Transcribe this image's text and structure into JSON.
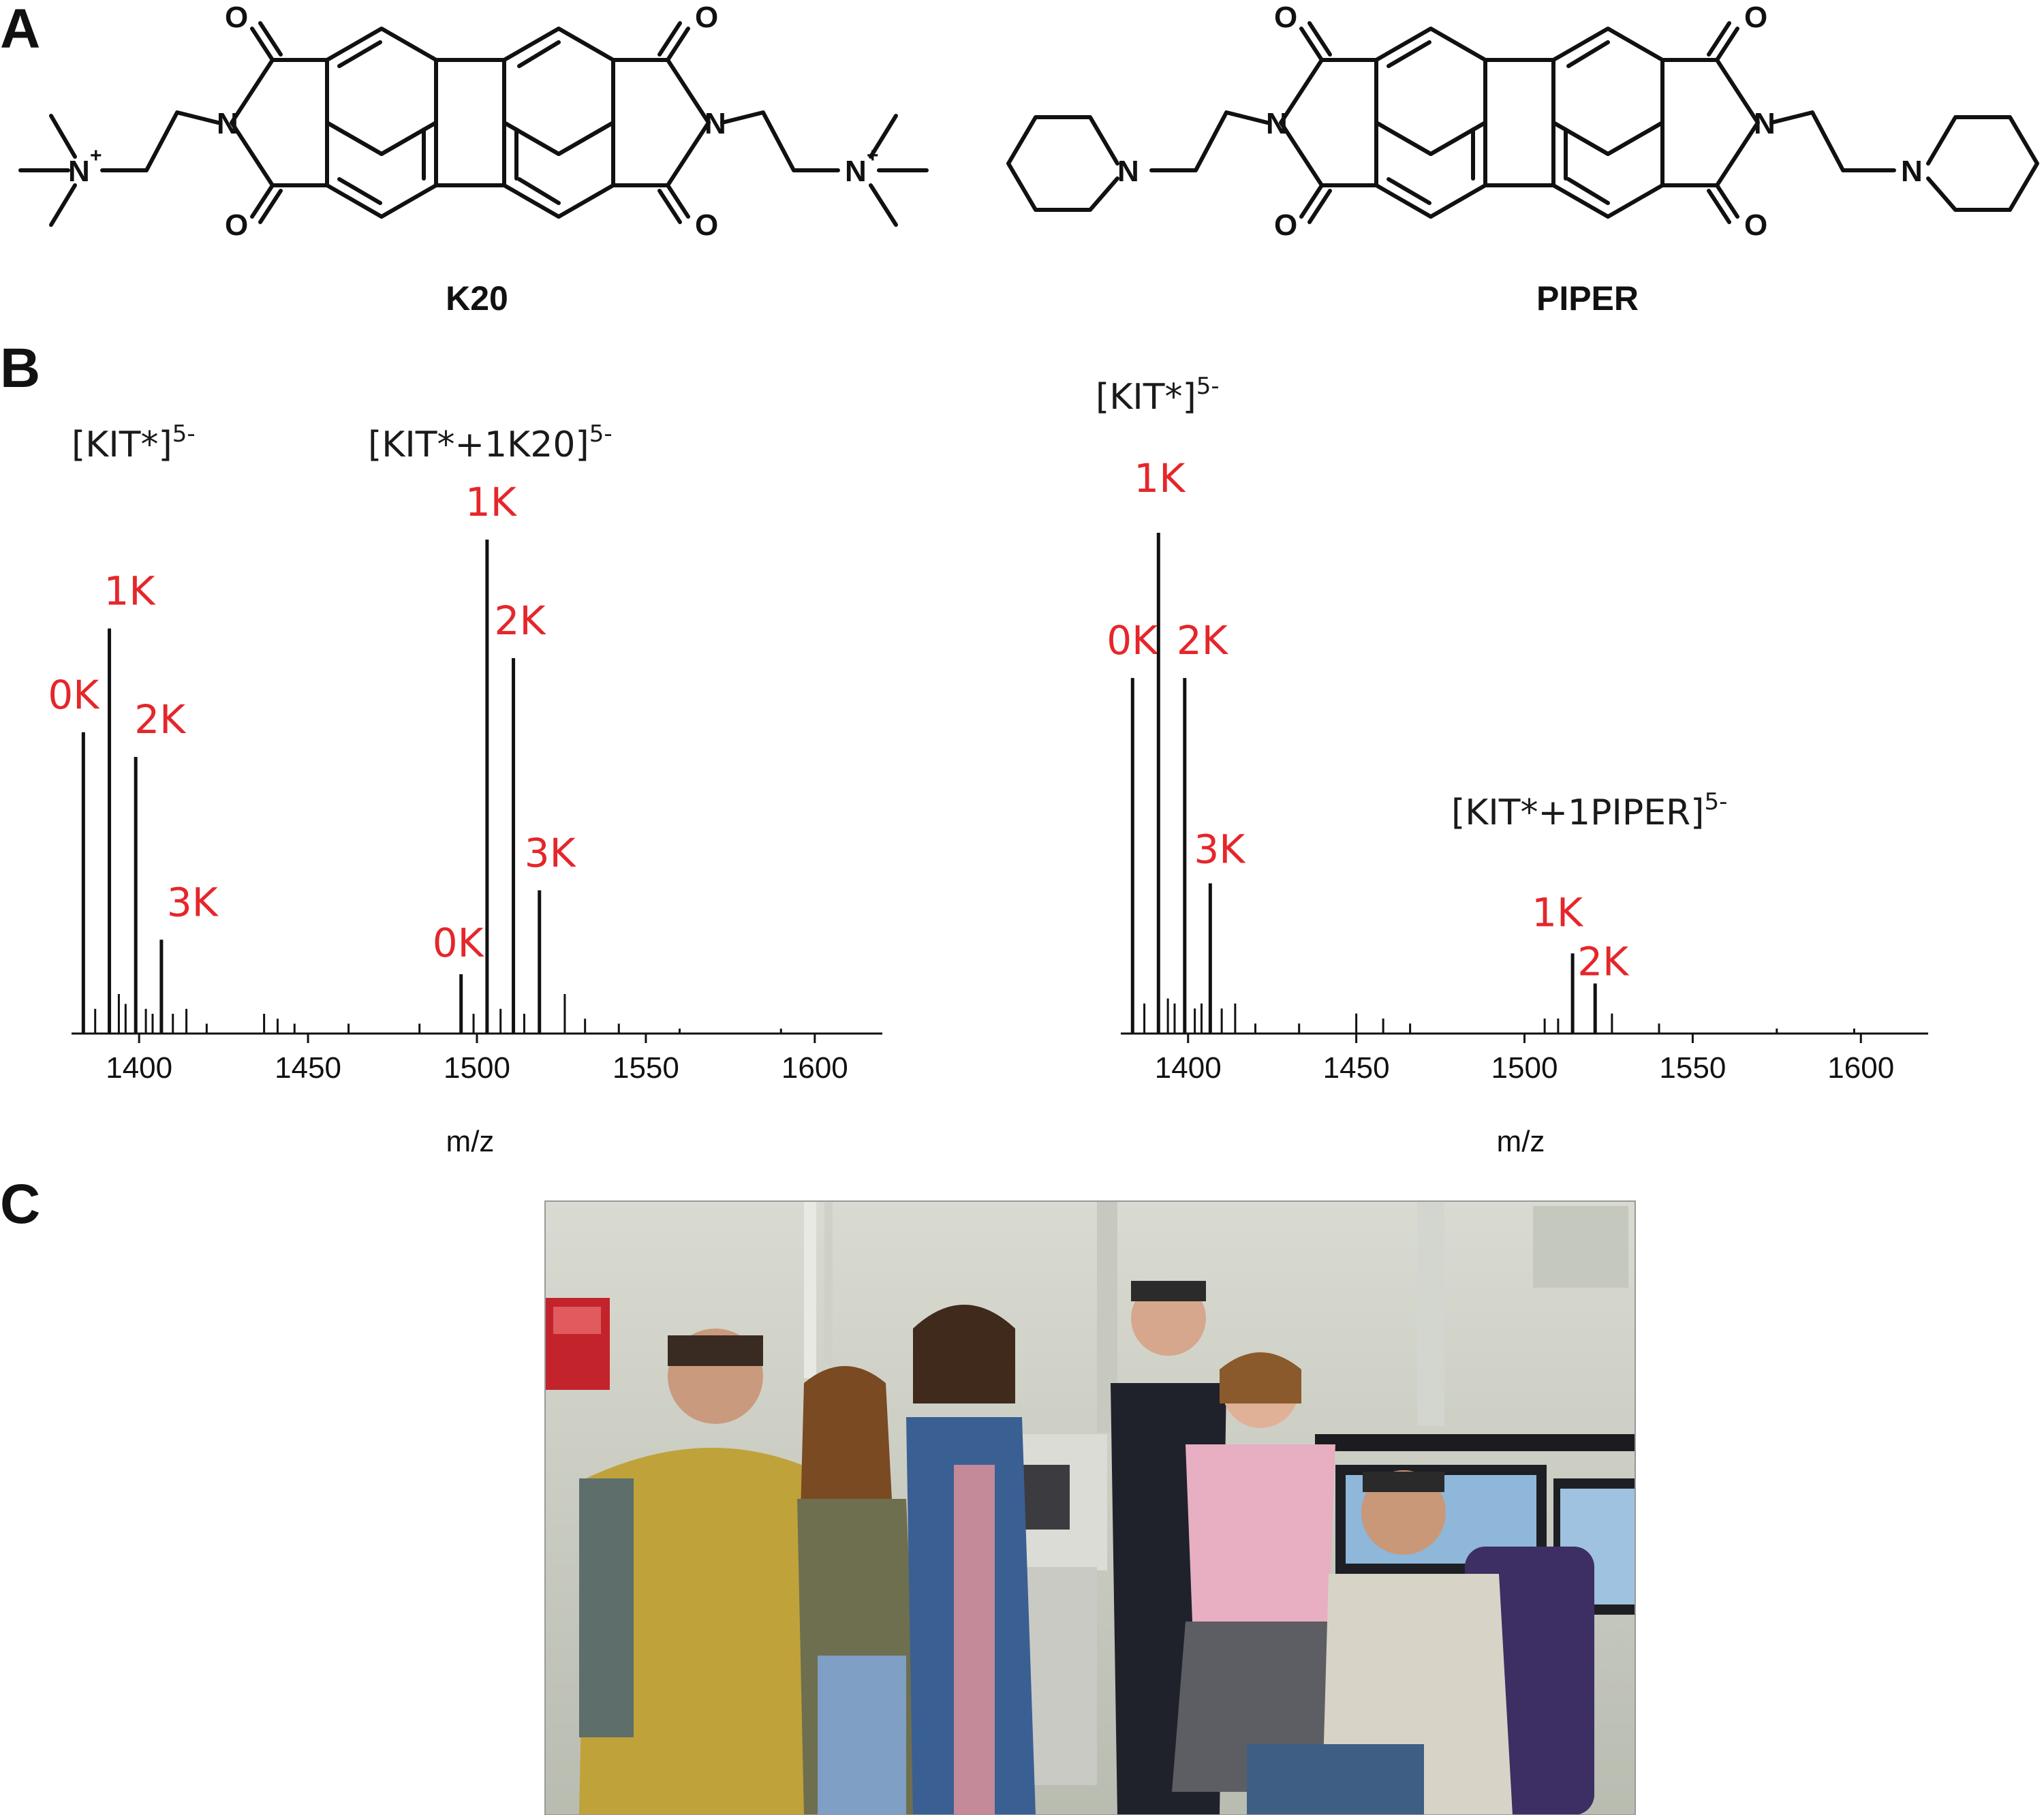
{
  "panels": {
    "a": "A",
    "b": "B",
    "c": "C"
  },
  "molecules": [
    {
      "name": "K20",
      "atoms": {
        "imide_n": "N",
        "oxygen": "O",
        "ammonium_n": "N",
        "charge": "+"
      }
    },
    {
      "name": "PIPER",
      "atoms": {
        "imide_n": "N",
        "oxygen": "O",
        "ring_n": "N"
      }
    }
  ],
  "spectra": {
    "left": {
      "species1": {
        "base": "[KIT*]",
        "sup": "5-"
      },
      "species2": {
        "base": "[KIT*+1K20]",
        "sup": "5-"
      },
      "xlabel": "m/z"
    },
    "right": {
      "species1": {
        "base": "[KIT*]",
        "sup": "5-"
      },
      "species2": {
        "base": "[KIT*+1PIPER]",
        "sup": "5-"
      },
      "xlabel": "m/z"
    }
  },
  "chart_data": [
    {
      "type": "line",
      "xlabel": "m/z",
      "ylabel": "",
      "xlim": [
        1380,
        1620
      ],
      "xticks": [
        1400,
        1450,
        1500,
        1550,
        1600
      ],
      "grid": false,
      "annotations": [
        "[KIT*]5-",
        "[KIT*+1K20]5-"
      ],
      "peaks": [
        {
          "x": 1383.5,
          "y": 0.61,
          "label": "0K"
        },
        {
          "x": 1391.2,
          "y": 0.82,
          "label": "1K"
        },
        {
          "x": 1399.0,
          "y": 0.56,
          "label": "2K"
        },
        {
          "x": 1406.6,
          "y": 0.19,
          "label": "3K"
        },
        {
          "x": 1495.3,
          "y": 0.12,
          "label": "0K"
        },
        {
          "x": 1503.0,
          "y": 1.0,
          "label": "1K"
        },
        {
          "x": 1510.8,
          "y": 0.76,
          "label": "2K"
        },
        {
          "x": 1518.5,
          "y": 0.29,
          "label": "3K"
        }
      ],
      "minor_peaks": [
        {
          "x": 1387,
          "y": 0.05
        },
        {
          "x": 1394,
          "y": 0.08
        },
        {
          "x": 1396,
          "y": 0.06
        },
        {
          "x": 1402,
          "y": 0.05
        },
        {
          "x": 1404,
          "y": 0.04
        },
        {
          "x": 1410,
          "y": 0.04
        },
        {
          "x": 1414,
          "y": 0.05
        },
        {
          "x": 1420,
          "y": 0.02
        },
        {
          "x": 1437,
          "y": 0.04
        },
        {
          "x": 1441,
          "y": 0.03
        },
        {
          "x": 1446,
          "y": 0.02
        },
        {
          "x": 1462,
          "y": 0.02
        },
        {
          "x": 1483,
          "y": 0.02
        },
        {
          "x": 1499,
          "y": 0.04
        },
        {
          "x": 1507,
          "y": 0.05
        },
        {
          "x": 1514,
          "y": 0.04
        },
        {
          "x": 1526,
          "y": 0.08
        },
        {
          "x": 1532,
          "y": 0.03
        },
        {
          "x": 1542,
          "y": 0.02
        },
        {
          "x": 1560,
          "y": 0.01
        },
        {
          "x": 1590,
          "y": 0.01
        }
      ]
    },
    {
      "type": "line",
      "xlabel": "m/z",
      "ylabel": "",
      "xlim": [
        1380,
        1620
      ],
      "xticks": [
        1400,
        1450,
        1500,
        1550,
        1600
      ],
      "grid": false,
      "annotations": [
        "[KIT*]5-",
        "[KIT*+1PIPER]5-"
      ],
      "peaks": [
        {
          "x": 1383.5,
          "y": 0.71,
          "label": "0K"
        },
        {
          "x": 1391.2,
          "y": 1.0,
          "label": "1K"
        },
        {
          "x": 1399.0,
          "y": 0.71,
          "label": "2K"
        },
        {
          "x": 1406.6,
          "y": 0.3,
          "label": "3K"
        },
        {
          "x": 1514.3,
          "y": 0.16,
          "label": "1K"
        },
        {
          "x": 1521.0,
          "y": 0.1,
          "label": "2K"
        }
      ],
      "minor_peaks": [
        {
          "x": 1387,
          "y": 0.06
        },
        {
          "x": 1394,
          "y": 0.07
        },
        {
          "x": 1396,
          "y": 0.06
        },
        {
          "x": 1402,
          "y": 0.05
        },
        {
          "x": 1404,
          "y": 0.06
        },
        {
          "x": 1410,
          "y": 0.05
        },
        {
          "x": 1414,
          "y": 0.06
        },
        {
          "x": 1420,
          "y": 0.02
        },
        {
          "x": 1433,
          "y": 0.02
        },
        {
          "x": 1450,
          "y": 0.04
        },
        {
          "x": 1458,
          "y": 0.03
        },
        {
          "x": 1466,
          "y": 0.02
        },
        {
          "x": 1506,
          "y": 0.03
        },
        {
          "x": 1510,
          "y": 0.03
        },
        {
          "x": 1526,
          "y": 0.04
        },
        {
          "x": 1540,
          "y": 0.02
        },
        {
          "x": 1575,
          "y": 0.01
        },
        {
          "x": 1598,
          "y": 0.01
        }
      ]
    }
  ],
  "colors": {
    "peak_label": "#e5262b",
    "ink": "#111111"
  }
}
